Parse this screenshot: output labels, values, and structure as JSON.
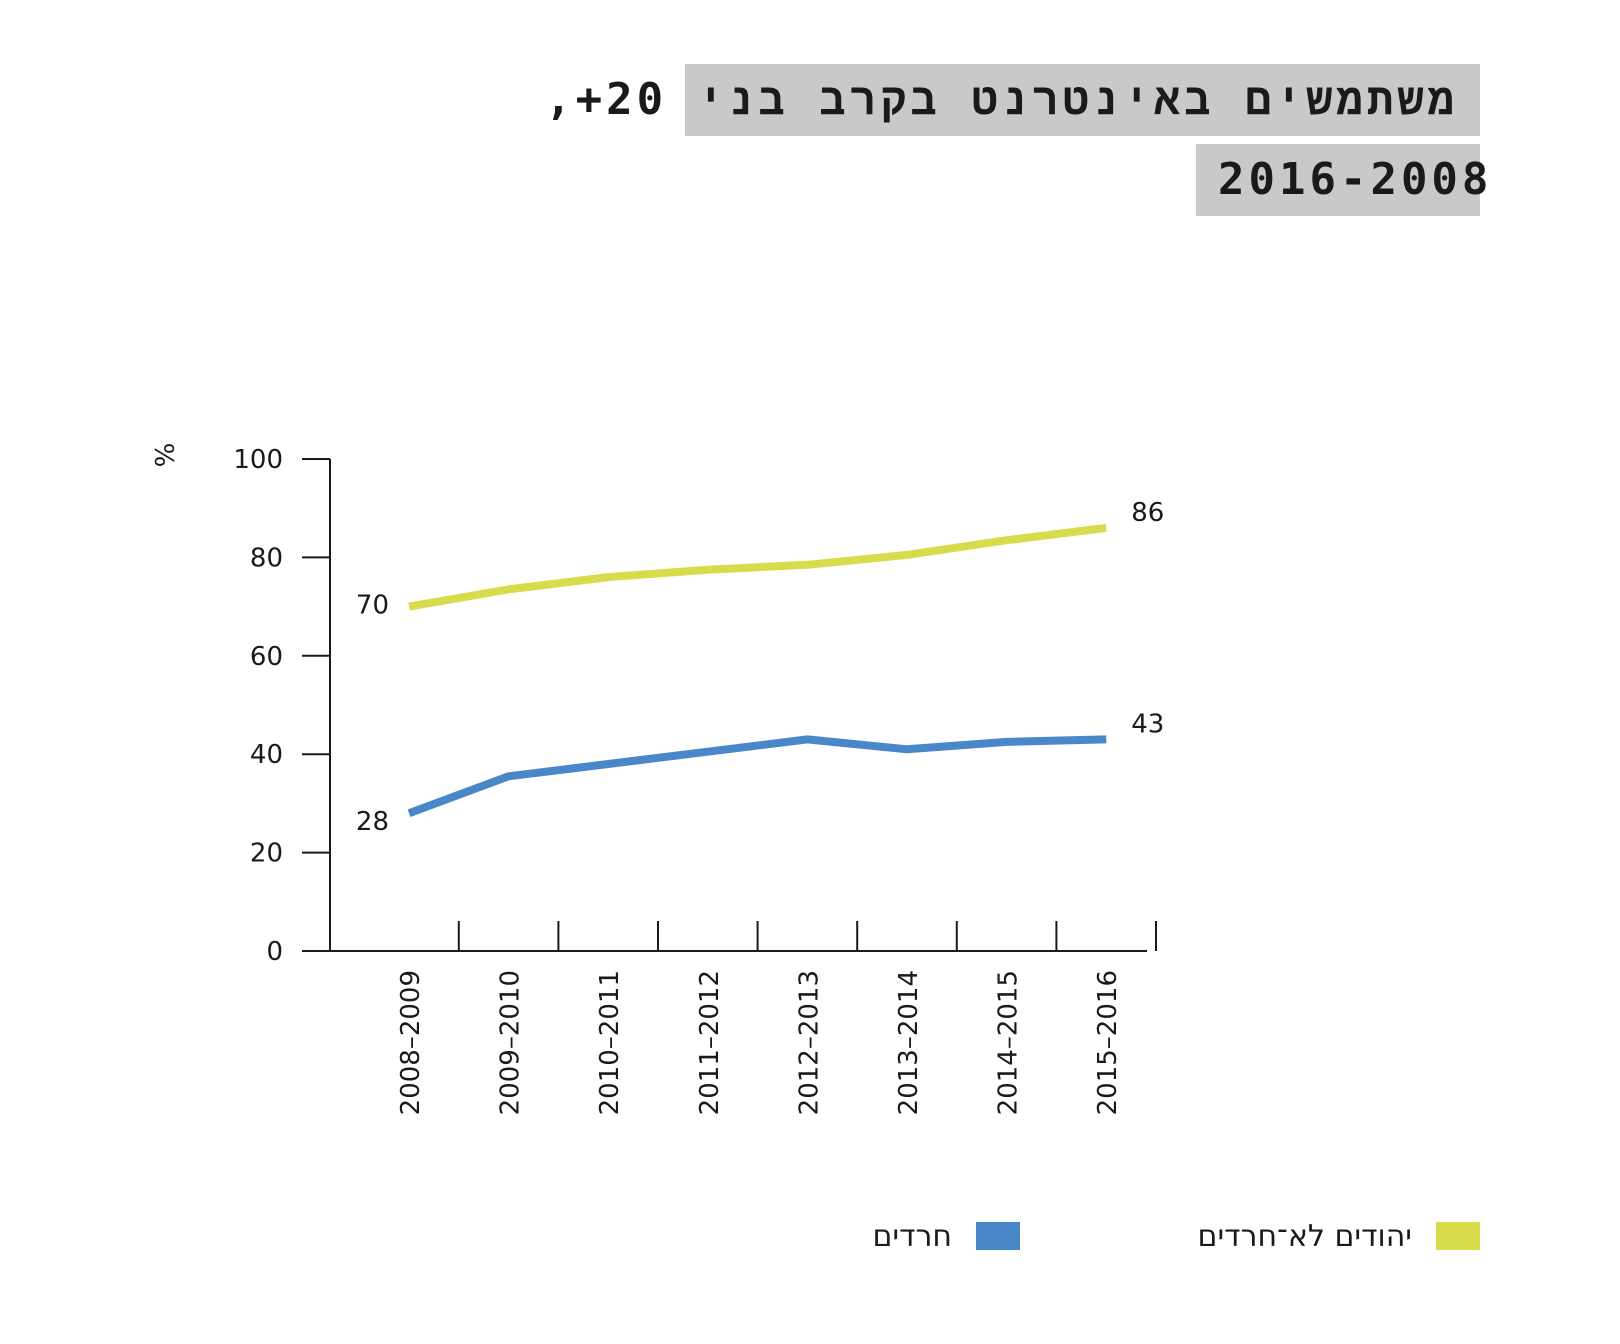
{
  "title": {
    "line1": "משתמשים באינטרנט בקרב בני 20+,",
    "line2": "2016-2008"
  },
  "legend": {
    "items": [
      {
        "label": "יהודים לא־חרדים",
        "color": "#d6dc4b"
      },
      {
        "label": "חרדים",
        "color": "#4a87c9"
      }
    ]
  },
  "chart_data": {
    "type": "line",
    "ylabel": "%",
    "ylim": [
      0,
      100
    ],
    "yticks": [
      0,
      20,
      40,
      60,
      80,
      100
    ],
    "categories": [
      "2008–2009",
      "2009–2010",
      "2010–2011",
      "2011–2012",
      "2012–2013",
      "2013–2014",
      "2014–2015",
      "2015–2016"
    ],
    "series": [
      {
        "name": "יהודים לא־חרדים",
        "color": "#d6dc4b",
        "values": [
          70,
          73.5,
          76,
          77.5,
          78.5,
          80.5,
          83.5,
          86
        ],
        "start_label": "70",
        "end_label": "86"
      },
      {
        "name": "חרדים",
        "color": "#4a87c9",
        "values": [
          28,
          35.5,
          38,
          40.5,
          43,
          41,
          42.5,
          43
        ],
        "start_label": "28",
        "end_label": "43"
      }
    ],
    "grid": false,
    "legend_position": "bottom-right"
  }
}
